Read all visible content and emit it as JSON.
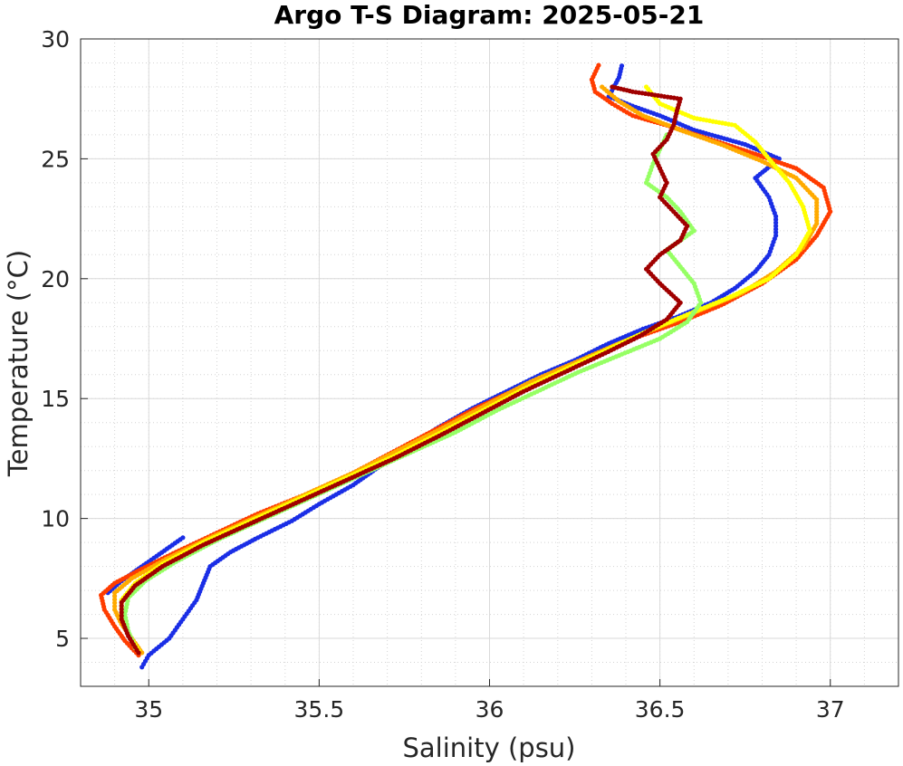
{
  "chart_data": {
    "type": "scatter",
    "title": "Argo T-S Diagram: 2025-05-21",
    "xlabel": "Salinity (psu)",
    "ylabel": "Temperature (°C)",
    "xlim": [
      34.8,
      37.2
    ],
    "ylim": [
      3,
      30
    ],
    "xticks": [
      35,
      35.5,
      36,
      36.5,
      37
    ],
    "xtick_labels": [
      "35",
      "35.5",
      "36",
      "36.5",
      "37"
    ],
    "yticks": [
      5,
      10,
      15,
      20,
      25,
      30
    ],
    "ytick_labels": [
      "5",
      "10",
      "15",
      "20",
      "25",
      "30"
    ],
    "grid": true,
    "minor_grid": true,
    "legend": "none",
    "series": [
      {
        "color": "#1a2ee6",
        "points": [
          [
            34.98,
            3.8
          ],
          [
            35.0,
            4.3
          ],
          [
            35.06,
            5.0
          ],
          [
            35.1,
            5.8
          ],
          [
            35.14,
            6.6
          ],
          [
            35.16,
            7.3
          ],
          [
            35.18,
            8.0
          ],
          [
            35.24,
            8.6
          ],
          [
            35.32,
            9.2
          ],
          [
            35.42,
            9.9
          ],
          [
            35.5,
            10.6
          ],
          [
            35.6,
            11.4
          ],
          [
            35.68,
            12.2
          ],
          [
            35.76,
            13.0
          ],
          [
            35.85,
            13.8
          ],
          [
            35.95,
            14.6
          ],
          [
            36.05,
            15.3
          ],
          [
            36.15,
            16.0
          ],
          [
            36.25,
            16.6
          ],
          [
            36.35,
            17.3
          ],
          [
            36.45,
            17.9
          ],
          [
            36.55,
            18.4
          ],
          [
            36.65,
            19.0
          ],
          [
            36.72,
            19.6
          ],
          [
            36.78,
            20.3
          ],
          [
            36.82,
            21.0
          ],
          [
            36.84,
            21.8
          ],
          [
            36.84,
            22.6
          ],
          [
            36.82,
            23.4
          ],
          [
            36.78,
            24.2
          ],
          [
            36.85,
            25.0
          ],
          [
            36.75,
            25.6
          ],
          [
            36.6,
            26.2
          ],
          [
            36.5,
            26.8
          ],
          [
            36.42,
            27.2
          ],
          [
            36.35,
            27.6
          ],
          [
            36.38,
            28.4
          ],
          [
            36.39,
            29.0
          ],
          [
            34.88,
            6.9
          ],
          [
            34.92,
            7.4
          ],
          [
            35.0,
            8.2
          ],
          [
            35.1,
            9.2
          ]
        ]
      },
      {
        "color": "#ff3c00",
        "points": [
          [
            34.97,
            4.3
          ],
          [
            34.93,
            4.9
          ],
          [
            34.9,
            5.5
          ],
          [
            34.87,
            6.2
          ],
          [
            34.86,
            6.8
          ],
          [
            34.9,
            7.3
          ],
          [
            34.98,
            7.9
          ],
          [
            35.08,
            8.6
          ],
          [
            35.2,
            9.4
          ],
          [
            35.32,
            10.2
          ],
          [
            35.46,
            11.0
          ],
          [
            35.6,
            11.9
          ],
          [
            35.72,
            12.8
          ],
          [
            35.84,
            13.7
          ],
          [
            35.96,
            14.6
          ],
          [
            36.08,
            15.4
          ],
          [
            36.2,
            16.2
          ],
          [
            36.32,
            16.9
          ],
          [
            36.44,
            17.6
          ],
          [
            36.56,
            18.2
          ],
          [
            36.68,
            18.9
          ],
          [
            36.8,
            19.8
          ],
          [
            36.9,
            20.8
          ],
          [
            36.96,
            21.8
          ],
          [
            37.0,
            22.8
          ],
          [
            36.98,
            23.8
          ],
          [
            36.9,
            24.6
          ],
          [
            36.78,
            25.2
          ],
          [
            36.65,
            25.8
          ],
          [
            36.52,
            26.4
          ],
          [
            36.42,
            26.8
          ],
          [
            36.36,
            27.3
          ],
          [
            36.31,
            27.8
          ],
          [
            36.3,
            28.3
          ],
          [
            36.32,
            28.9
          ]
        ]
      },
      {
        "color": "#ffaa00",
        "points": [
          [
            34.98,
            4.4
          ],
          [
            34.95,
            5.0
          ],
          [
            34.92,
            5.6
          ],
          [
            34.9,
            6.2
          ],
          [
            34.9,
            6.9
          ],
          [
            34.95,
            7.5
          ],
          [
            35.05,
            8.3
          ],
          [
            35.18,
            9.2
          ],
          [
            35.32,
            10.1
          ],
          [
            35.46,
            11.0
          ],
          [
            35.6,
            11.9
          ],
          [
            35.74,
            12.9
          ],
          [
            35.88,
            13.9
          ],
          [
            36.0,
            14.8
          ],
          [
            36.12,
            15.7
          ],
          [
            36.25,
            16.5
          ],
          [
            36.38,
            17.3
          ],
          [
            36.5,
            18.0
          ],
          [
            36.62,
            18.7
          ],
          [
            36.74,
            19.4
          ],
          [
            36.84,
            20.3
          ],
          [
            36.92,
            21.3
          ],
          [
            36.96,
            22.3
          ],
          [
            36.96,
            23.3
          ],
          [
            36.9,
            24.2
          ],
          [
            36.8,
            24.9
          ],
          [
            36.68,
            25.6
          ],
          [
            36.56,
            26.2
          ],
          [
            36.45,
            26.8
          ],
          [
            36.38,
            27.4
          ],
          [
            36.33,
            28.0
          ]
        ]
      },
      {
        "color": "#ffff00",
        "points": [
          [
            34.97,
            4.5
          ],
          [
            34.94,
            5.2
          ],
          [
            34.92,
            5.9
          ],
          [
            34.92,
            6.6
          ],
          [
            34.96,
            7.3
          ],
          [
            35.04,
            8.1
          ],
          [
            35.16,
            9.0
          ],
          [
            35.3,
            9.9
          ],
          [
            35.44,
            10.8
          ],
          [
            35.58,
            11.7
          ],
          [
            35.72,
            12.6
          ],
          [
            35.86,
            13.6
          ],
          [
            35.98,
            14.5
          ],
          [
            36.1,
            15.4
          ],
          [
            36.22,
            16.2
          ],
          [
            36.34,
            17.0
          ],
          [
            36.46,
            17.8
          ],
          [
            36.58,
            18.5
          ],
          [
            36.7,
            19.2
          ],
          [
            36.82,
            20.0
          ],
          [
            36.9,
            21.0
          ],
          [
            36.94,
            22.0
          ],
          [
            36.92,
            23.0
          ],
          [
            36.88,
            24.0
          ],
          [
            36.82,
            25.0
          ],
          [
            36.78,
            25.7
          ],
          [
            36.72,
            26.4
          ],
          [
            36.6,
            26.7
          ],
          [
            36.5,
            27.3
          ],
          [
            36.46,
            28.0
          ]
        ]
      },
      {
        "color": "#96ff64",
        "points": [
          [
            34.96,
            4.6
          ],
          [
            34.94,
            5.3
          ],
          [
            34.93,
            6.0
          ],
          [
            34.94,
            6.7
          ],
          [
            34.99,
            7.4
          ],
          [
            35.08,
            8.2
          ],
          [
            35.2,
            9.1
          ],
          [
            35.34,
            10.0
          ],
          [
            35.48,
            10.9
          ],
          [
            35.62,
            11.8
          ],
          [
            35.76,
            12.7
          ],
          [
            35.9,
            13.6
          ],
          [
            36.02,
            14.5
          ],
          [
            36.14,
            15.3
          ],
          [
            36.26,
            16.1
          ],
          [
            36.38,
            16.8
          ],
          [
            36.5,
            17.5
          ],
          [
            36.58,
            18.2
          ],
          [
            36.62,
            19.0
          ],
          [
            36.6,
            19.8
          ],
          [
            36.56,
            20.5
          ],
          [
            36.52,
            21.2
          ],
          [
            36.6,
            22.0
          ],
          [
            36.56,
            22.8
          ],
          [
            36.52,
            23.4
          ],
          [
            36.46,
            24.0
          ],
          [
            36.48,
            24.8
          ],
          [
            36.5,
            25.4
          ],
          [
            36.52,
            26.0
          ]
        ]
      },
      {
        "color": "#a00000",
        "points": [
          [
            34.97,
            4.4
          ],
          [
            34.94,
            5.1
          ],
          [
            34.92,
            5.8
          ],
          [
            34.92,
            6.5
          ],
          [
            34.96,
            7.2
          ],
          [
            35.04,
            8.0
          ],
          [
            35.16,
            8.9
          ],
          [
            35.3,
            9.8
          ],
          [
            35.44,
            10.7
          ],
          [
            35.58,
            11.6
          ],
          [
            35.72,
            12.5
          ],
          [
            35.86,
            13.5
          ],
          [
            35.98,
            14.4
          ],
          [
            36.1,
            15.3
          ],
          [
            36.22,
            16.1
          ],
          [
            36.34,
            16.9
          ],
          [
            36.44,
            17.6
          ],
          [
            36.52,
            18.3
          ],
          [
            36.56,
            19.0
          ],
          [
            36.5,
            19.8
          ],
          [
            36.46,
            20.4
          ],
          [
            36.5,
            21.0
          ],
          [
            36.56,
            21.6
          ],
          [
            36.58,
            22.2
          ],
          [
            36.54,
            22.8
          ],
          [
            36.5,
            23.4
          ],
          [
            36.52,
            24.0
          ],
          [
            36.5,
            24.6
          ],
          [
            36.48,
            25.2
          ],
          [
            36.52,
            25.8
          ],
          [
            36.54,
            26.4
          ],
          [
            36.55,
            27.0
          ],
          [
            36.56,
            27.5
          ],
          [
            36.42,
            27.8
          ],
          [
            36.36,
            28.0
          ]
        ]
      }
    ]
  }
}
